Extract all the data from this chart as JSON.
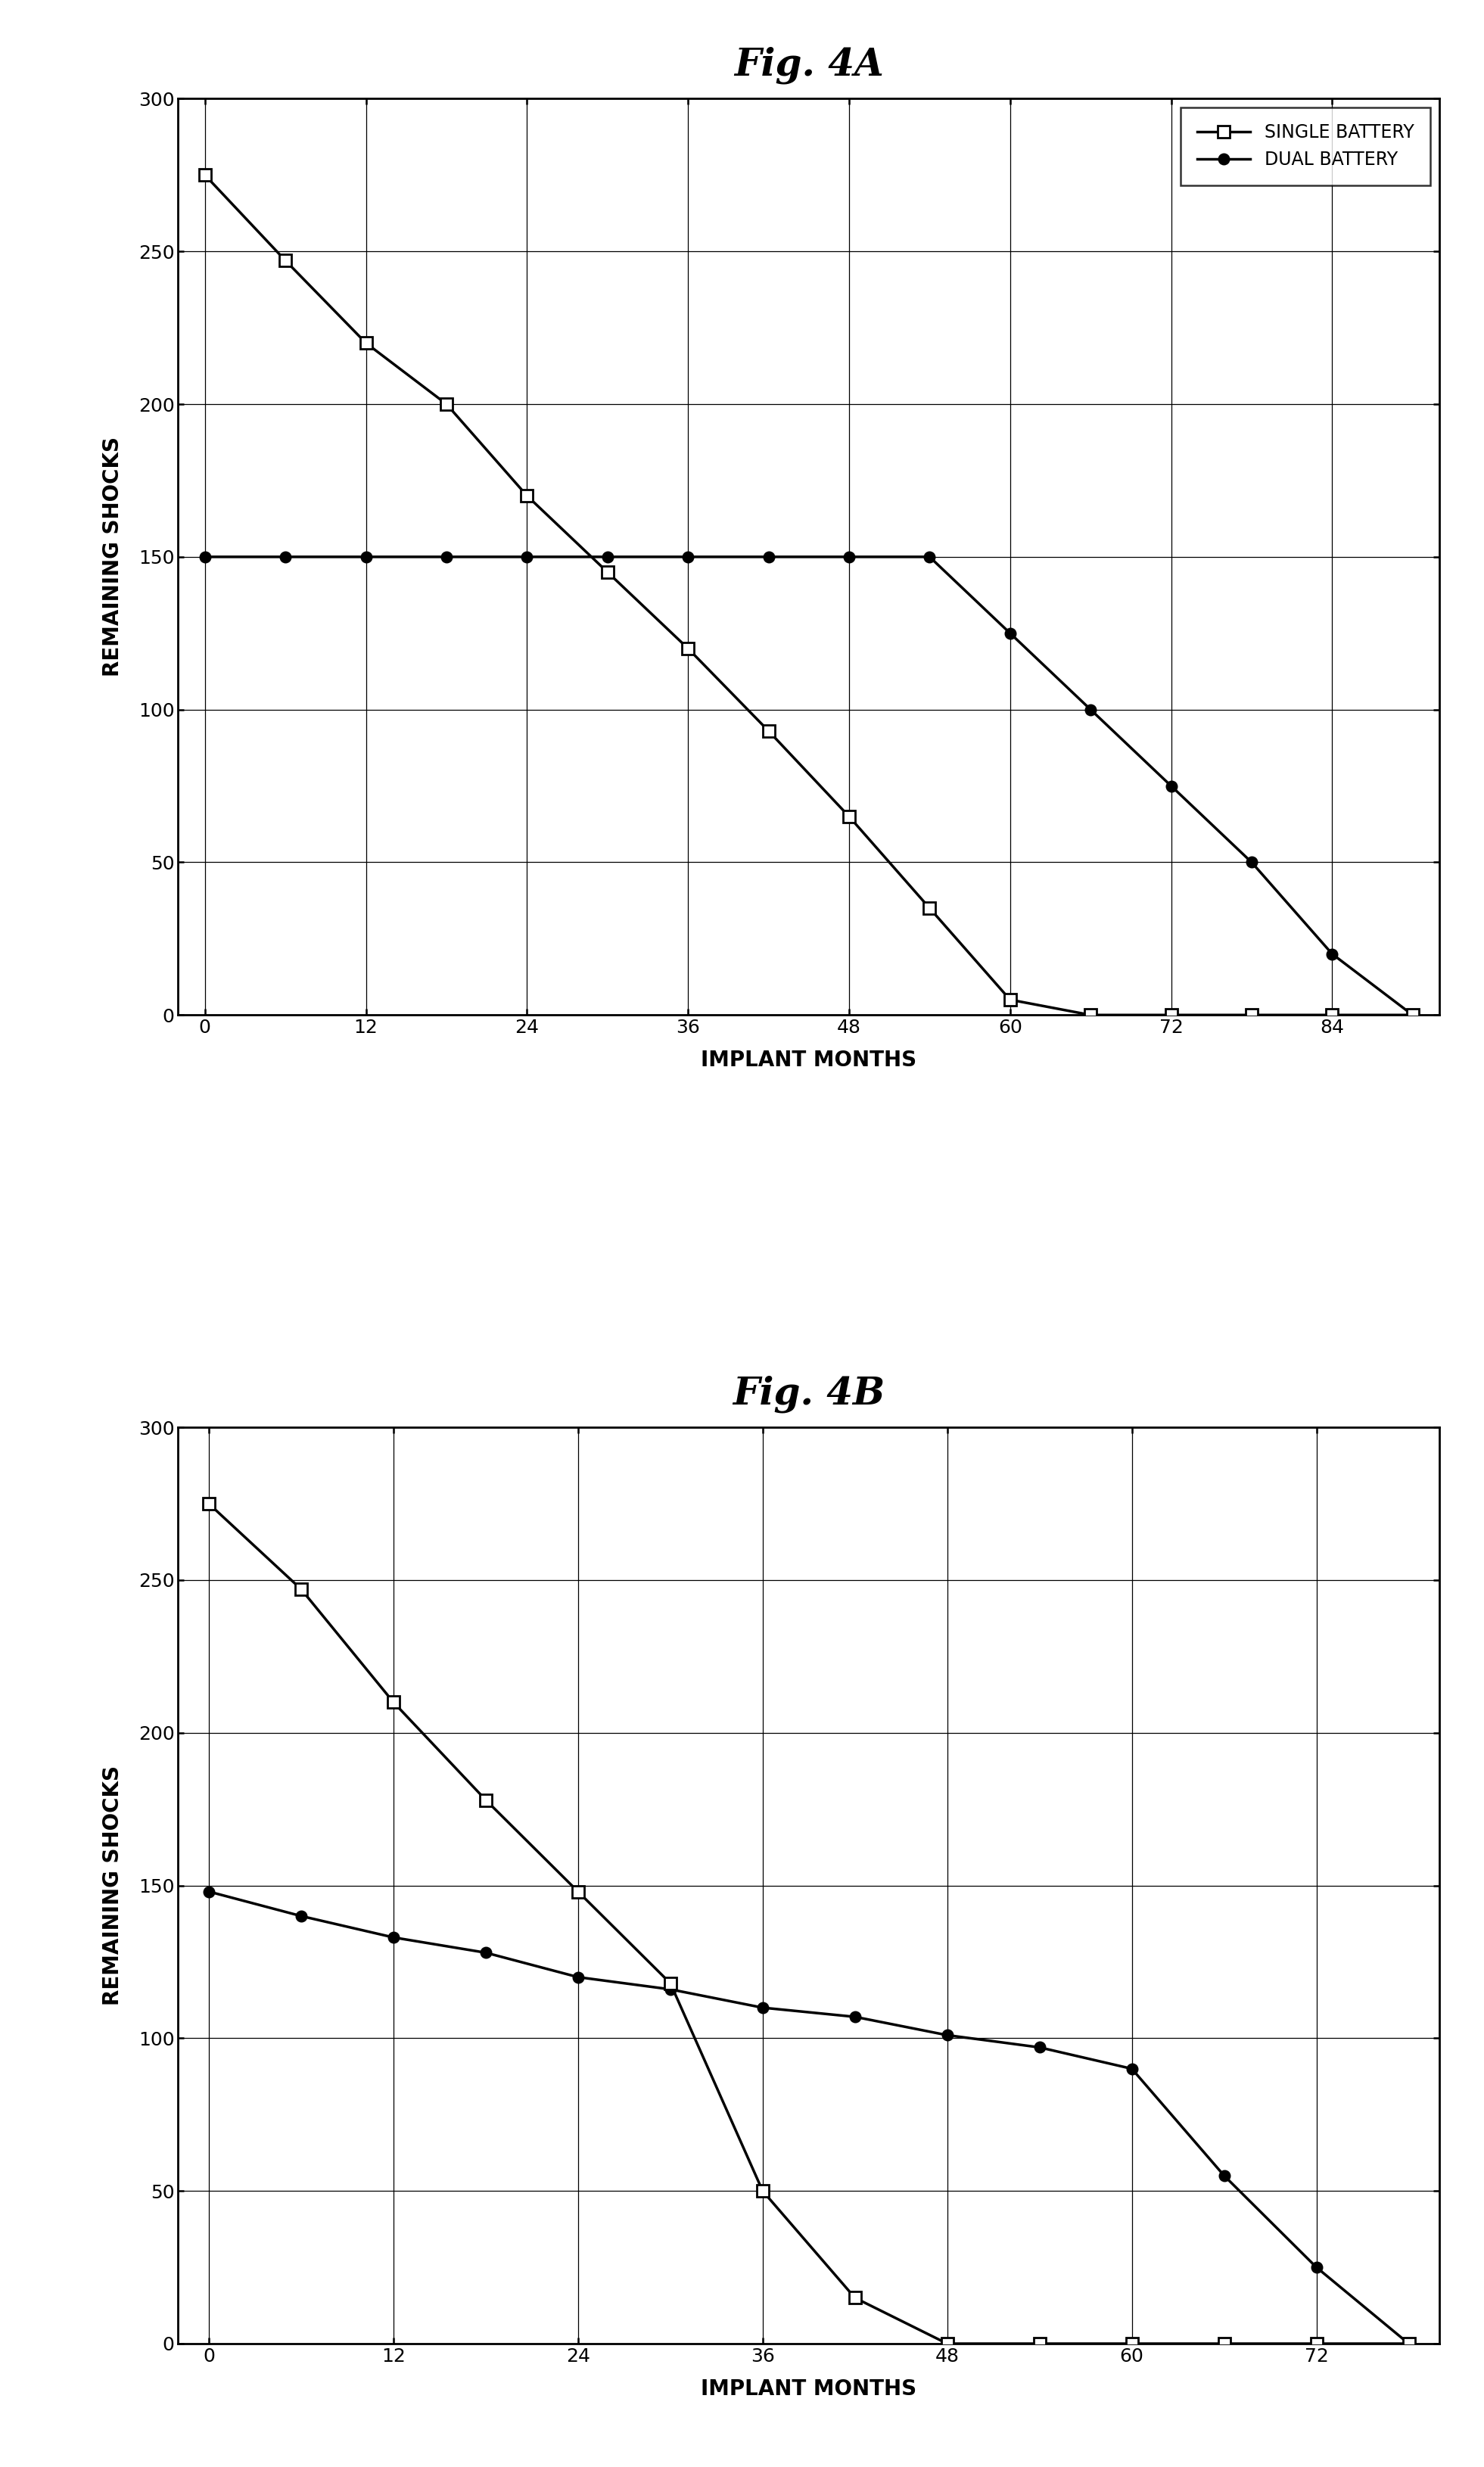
{
  "fig_a": {
    "title": "Fig. 4A",
    "single_battery_x": [
      0,
      6,
      12,
      18,
      24,
      30,
      36,
      42,
      48,
      54,
      60,
      66,
      72,
      78,
      84,
      90
    ],
    "single_battery_y": [
      275,
      247,
      220,
      200,
      170,
      145,
      120,
      93,
      65,
      35,
      5,
      0,
      0,
      0,
      0,
      0
    ],
    "dual_battery_x": [
      0,
      6,
      12,
      18,
      24,
      30,
      36,
      42,
      48,
      54,
      60,
      66,
      72,
      78,
      84,
      90
    ],
    "dual_battery_y": [
      150,
      150,
      150,
      150,
      150,
      150,
      150,
      150,
      150,
      150,
      125,
      100,
      75,
      50,
      20,
      0
    ],
    "xlabel": "IMPLANT MONTHS",
    "ylabel": "REMAINING SHOCKS",
    "xlim": [
      -2,
      92
    ],
    "ylim": [
      0,
      300
    ],
    "xticks": [
      0,
      12,
      24,
      36,
      48,
      60,
      72,
      84
    ],
    "yticks": [
      0,
      50,
      100,
      150,
      200,
      250,
      300
    ],
    "show_legend": true
  },
  "fig_b": {
    "title": "Fig. 4B",
    "single_battery_x": [
      0,
      6,
      12,
      18,
      24,
      30,
      36,
      42,
      48,
      54,
      60,
      66,
      72,
      78
    ],
    "single_battery_y": [
      275,
      247,
      210,
      178,
      148,
      118,
      50,
      15,
      0,
      0,
      0,
      0,
      0,
      0
    ],
    "dual_battery_x": [
      0,
      6,
      12,
      18,
      24,
      30,
      36,
      42,
      48,
      54,
      60,
      66,
      72,
      78
    ],
    "dual_battery_y": [
      148,
      140,
      133,
      128,
      120,
      116,
      110,
      107,
      101,
      97,
      90,
      55,
      25,
      0
    ],
    "xlabel": "IMPLANT MONTHS",
    "ylabel": "REMAINING SHOCKS",
    "xlim": [
      -2,
      80
    ],
    "ylim": [
      0,
      300
    ],
    "xticks": [
      0,
      12,
      24,
      36,
      48,
      60,
      72
    ],
    "yticks": [
      0,
      50,
      100,
      150,
      200,
      250,
      300
    ],
    "show_legend": false
  },
  "legend_labels": [
    "SINGLE BATTERY",
    "DUAL BATTERY"
  ],
  "line_color": "#000000",
  "background_color": "#ffffff",
  "title_fontsize": 36,
  "axis_label_fontsize": 20,
  "tick_fontsize": 18,
  "legend_fontsize": 17,
  "linewidth": 2.5,
  "sq_markersize": 12,
  "dot_markersize": 10
}
